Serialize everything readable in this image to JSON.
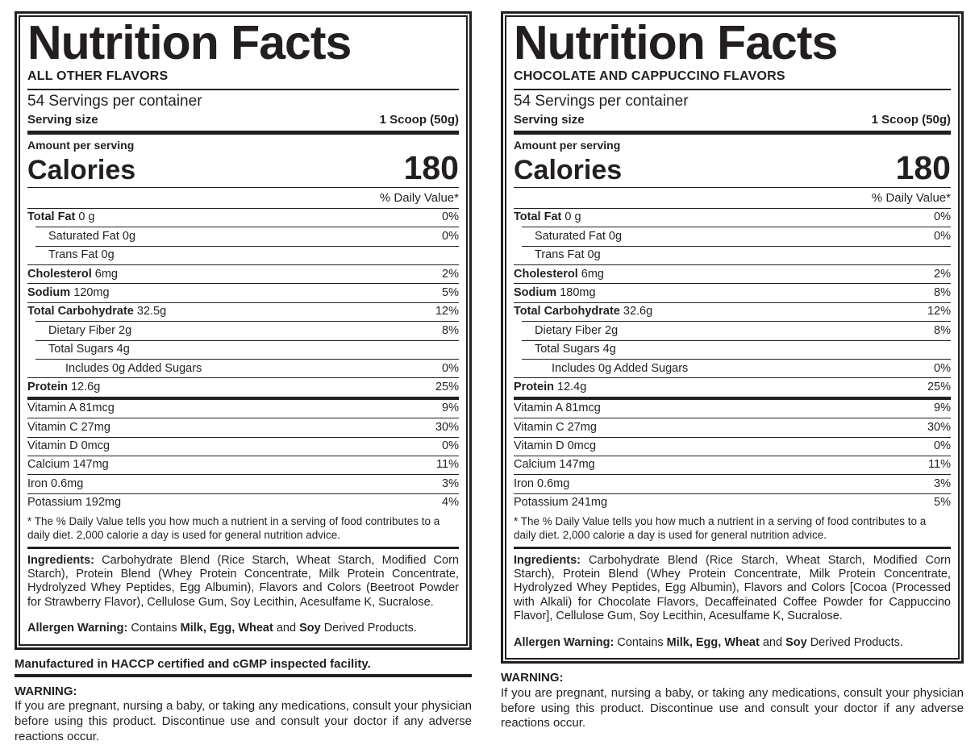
{
  "page": {
    "background": "#ffffff",
    "text_color": "#231f20"
  },
  "labels": [
    {
      "title": "Nutrition Facts",
      "flavor": "ALL OTHER FLAVORS",
      "servings_per_container": "54 Servings per container",
      "serving_size_label": "Serving size",
      "serving_size_value": "1 Scoop (50g)",
      "amount_per_serving_label": "Amount per serving",
      "calories_label": "Calories",
      "calories_value": "180",
      "daily_value_header": "% Daily Value*",
      "nutrients": [
        {
          "name": "Total Fat",
          "amount": "0 g",
          "dv": "0%",
          "bold": true,
          "indent": 0
        },
        {
          "name": "Saturated Fat",
          "amount": "0g",
          "dv": "0%",
          "bold": false,
          "indent": 1
        },
        {
          "name": "Trans Fat",
          "amount": "0g",
          "dv": "",
          "bold": false,
          "indent": 1
        },
        {
          "name": "Cholesterol",
          "amount": "6mg",
          "dv": "2%",
          "bold": true,
          "indent": 0
        },
        {
          "name": "Sodium",
          "amount": "120mg",
          "dv": "5%",
          "bold": true,
          "indent": 0
        },
        {
          "name": "Total Carbohydrate",
          "amount": "32.5g",
          "dv": "12%",
          "bold": true,
          "indent": 0
        },
        {
          "name": "Dietary Fiber",
          "amount": "2g",
          "dv": "8%",
          "bold": false,
          "indent": 1
        },
        {
          "name": "Total Sugars",
          "amount": "4g",
          "dv": "",
          "bold": false,
          "indent": 1
        },
        {
          "name": "Includes 0g Added Sugars",
          "amount": "",
          "dv": "0%",
          "bold": false,
          "indent": 2
        },
        {
          "name": "Protein",
          "amount": "12.6g",
          "dv": "25%",
          "bold": true,
          "indent": 0,
          "thick_after": true
        },
        {
          "name": "Vitamin A",
          "amount": "81mcg",
          "dv": "9%",
          "bold": false,
          "indent": 0
        },
        {
          "name": "Vitamin C",
          "amount": "27mg",
          "dv": "30%",
          "bold": false,
          "indent": 0
        },
        {
          "name": "Vitamin D",
          "amount": "0mcg",
          "dv": "0%",
          "bold": false,
          "indent": 0
        },
        {
          "name": "Calcium",
          "amount": "147mg",
          "dv": "11%",
          "bold": false,
          "indent": 0
        },
        {
          "name": "Iron",
          "amount": "0.6mg",
          "dv": "3%",
          "bold": false,
          "indent": 0
        },
        {
          "name": "Potassium",
          "amount": "192mg",
          "dv": "4%",
          "bold": false,
          "indent": 0
        }
      ],
      "footnote": "* The % Daily Value tells you how much a nutrient in a serving of food contributes to a daily diet. 2,000 calorie a day is used for general nutrition advice.",
      "ingredients_heading": "Ingredients:",
      "ingredients_text": " Carbohydrate Blend (Rice Starch, Wheat Starch, Modified Corn Starch), Protein Blend (Whey Protein Concentrate, Milk Protein Concentrate, Hydrolyzed Whey Peptides, Egg Albumin), Flavors and Colors (Beetroot Powder for Strawberry Flavor), Cellulose Gum, Soy Lecithin, Acesulfame K, Sucralose.",
      "allergen": {
        "heading": "Allergen Warning:",
        "contains": " Contains ",
        "b1": "Milk, Egg, Wheat",
        "and": " and ",
        "b2": "Soy",
        "rest": " Derived Products."
      },
      "manufactured": "Manufactured in HACCP certified and cGMP inspected facility.",
      "warning_heading": "WARNING:",
      "warning_text": "If you are pregnant, nursing a baby, or taking any medications, consult your physician before using this product. Discontinue use and consult your doctor if any adverse reactions occur."
    },
    {
      "title": "Nutrition Facts",
      "flavor": "CHOCOLATE AND CAPPUCCINO FLAVORS",
      "servings_per_container": "54 Servings per container",
      "serving_size_label": "Serving size",
      "serving_size_value": "1 Scoop (50g)",
      "amount_per_serving_label": "Amount per serving",
      "calories_label": "Calories",
      "calories_value": "180",
      "daily_value_header": "% Daily Value*",
      "nutrients": [
        {
          "name": "Total Fat",
          "amount": "0 g",
          "dv": "0%",
          "bold": true,
          "indent": 0
        },
        {
          "name": "Saturated Fat",
          "amount": "0g",
          "dv": "0%",
          "bold": false,
          "indent": 1
        },
        {
          "name": "Trans Fat",
          "amount": "0g",
          "dv": "",
          "bold": false,
          "indent": 1
        },
        {
          "name": "Cholesterol",
          "amount": "6mg",
          "dv": "2%",
          "bold": true,
          "indent": 0
        },
        {
          "name": "Sodium",
          "amount": "180mg",
          "dv": "8%",
          "bold": true,
          "indent": 0
        },
        {
          "name": "Total Carbohydrate",
          "amount": "32.6g",
          "dv": "12%",
          "bold": true,
          "indent": 0
        },
        {
          "name": "Dietary Fiber",
          "amount": "2g",
          "dv": "8%",
          "bold": false,
          "indent": 1
        },
        {
          "name": "Total Sugars",
          "amount": "4g",
          "dv": "",
          "bold": false,
          "indent": 1
        },
        {
          "name": "Includes 0g Added Sugars",
          "amount": "",
          "dv": "0%",
          "bold": false,
          "indent": 2
        },
        {
          "name": "Protein",
          "amount": "12.4g",
          "dv": "25%",
          "bold": true,
          "indent": 0,
          "thick_after": true
        },
        {
          "name": "Vitamin A",
          "amount": "81mcg",
          "dv": "9%",
          "bold": false,
          "indent": 0
        },
        {
          "name": "Vitamin C",
          "amount": "27mg",
          "dv": "30%",
          "bold": false,
          "indent": 0
        },
        {
          "name": "Vitamin D",
          "amount": "0mcg",
          "dv": "0%",
          "bold": false,
          "indent": 0
        },
        {
          "name": "Calcium",
          "amount": "147mg",
          "dv": "11%",
          "bold": false,
          "indent": 0
        },
        {
          "name": "Iron",
          "amount": "0.6mg",
          "dv": "3%",
          "bold": false,
          "indent": 0
        },
        {
          "name": "Potassium",
          "amount": "241mg",
          "dv": "5%",
          "bold": false,
          "indent": 0
        }
      ],
      "footnote": "* The % Daily Value tells you how much a nutrient in a serving of food contributes to a daily diet. 2,000 calorie a day is used for general nutrition advice.",
      "ingredients_heading": "Ingredients:",
      "ingredients_text": " Carbohydrate Blend (Rice Starch, Wheat Starch, Modified Corn Starch), Protein Blend (Whey Protein Concentrate, Milk Protein Concentrate, Hydrolyzed Whey Peptides, Egg Albumin), Flavors and Colors [Cocoa (Processed with Alkali) for Chocolate Flavors, Decaffeinated Coffee Powder for Cappuccino Flavor], Cellulose Gum, Soy Lecithin, Acesulfame K, Sucralose.",
      "allergen": {
        "heading": "Allergen Warning:",
        "contains": " Contains ",
        "b1": "Milk, Egg, Wheat",
        "and": " and ",
        "b2": "Soy",
        "rest": " Derived Products."
      },
      "warning_heading": "WARNING:",
      "warning_text": "If you are pregnant, nursing a baby, or taking any medications, consult your physician before using this product. Discontinue use and consult your doctor if any adverse reactions occur."
    }
  ]
}
